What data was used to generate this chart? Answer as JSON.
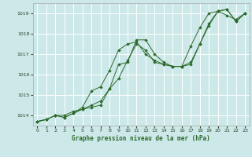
{
  "xlabel": "Graphe pression niveau de la mer (hPa)",
  "background_color": "#cce8e8",
  "grid_color": "#ffffff",
  "line_color": "#2d6a2d",
  "ylim": [
    1013.5,
    1019.5
  ],
  "yticks": [
    1014,
    1015,
    1016,
    1017,
    1018,
    1019
  ],
  "xlim": [
    -0.5,
    23.5
  ],
  "xticks": [
    0,
    1,
    2,
    3,
    4,
    5,
    6,
    7,
    8,
    9,
    10,
    11,
    12,
    13,
    14,
    15,
    16,
    17,
    18,
    19,
    20,
    21,
    22,
    23
  ],
  "series": [
    [
      1013.7,
      1013.8,
      1014.0,
      1014.0,
      1014.2,
      1014.3,
      1014.4,
      1014.5,
      1015.3,
      1016.5,
      1016.6,
      1017.7,
      1017.7,
      1017.0,
      1016.6,
      1016.4,
      1016.4,
      1017.4,
      1018.3,
      1019.0,
      1019.1,
      1018.9,
      1018.7,
      1019.0
    ],
    [
      1013.7,
      1013.8,
      1014.0,
      1013.9,
      1014.1,
      1014.3,
      1014.5,
      1014.7,
      1015.3,
      1015.8,
      1016.7,
      1017.5,
      1017.2,
      1016.6,
      1016.5,
      1016.4,
      1016.4,
      1016.6,
      1017.5,
      1018.5,
      1019.1,
      1019.2,
      1018.6,
      1019.0
    ],
    [
      1013.7,
      1013.8,
      1014.0,
      1013.9,
      1014.1,
      1014.4,
      1015.2,
      1015.4,
      1016.2,
      1017.2,
      1017.5,
      1017.6,
      1017.0,
      1016.7,
      1016.5,
      1016.4,
      1016.4,
      1016.5,
      1017.5,
      1018.4,
      1019.1,
      1019.2,
      1018.6,
      1019.0
    ]
  ]
}
